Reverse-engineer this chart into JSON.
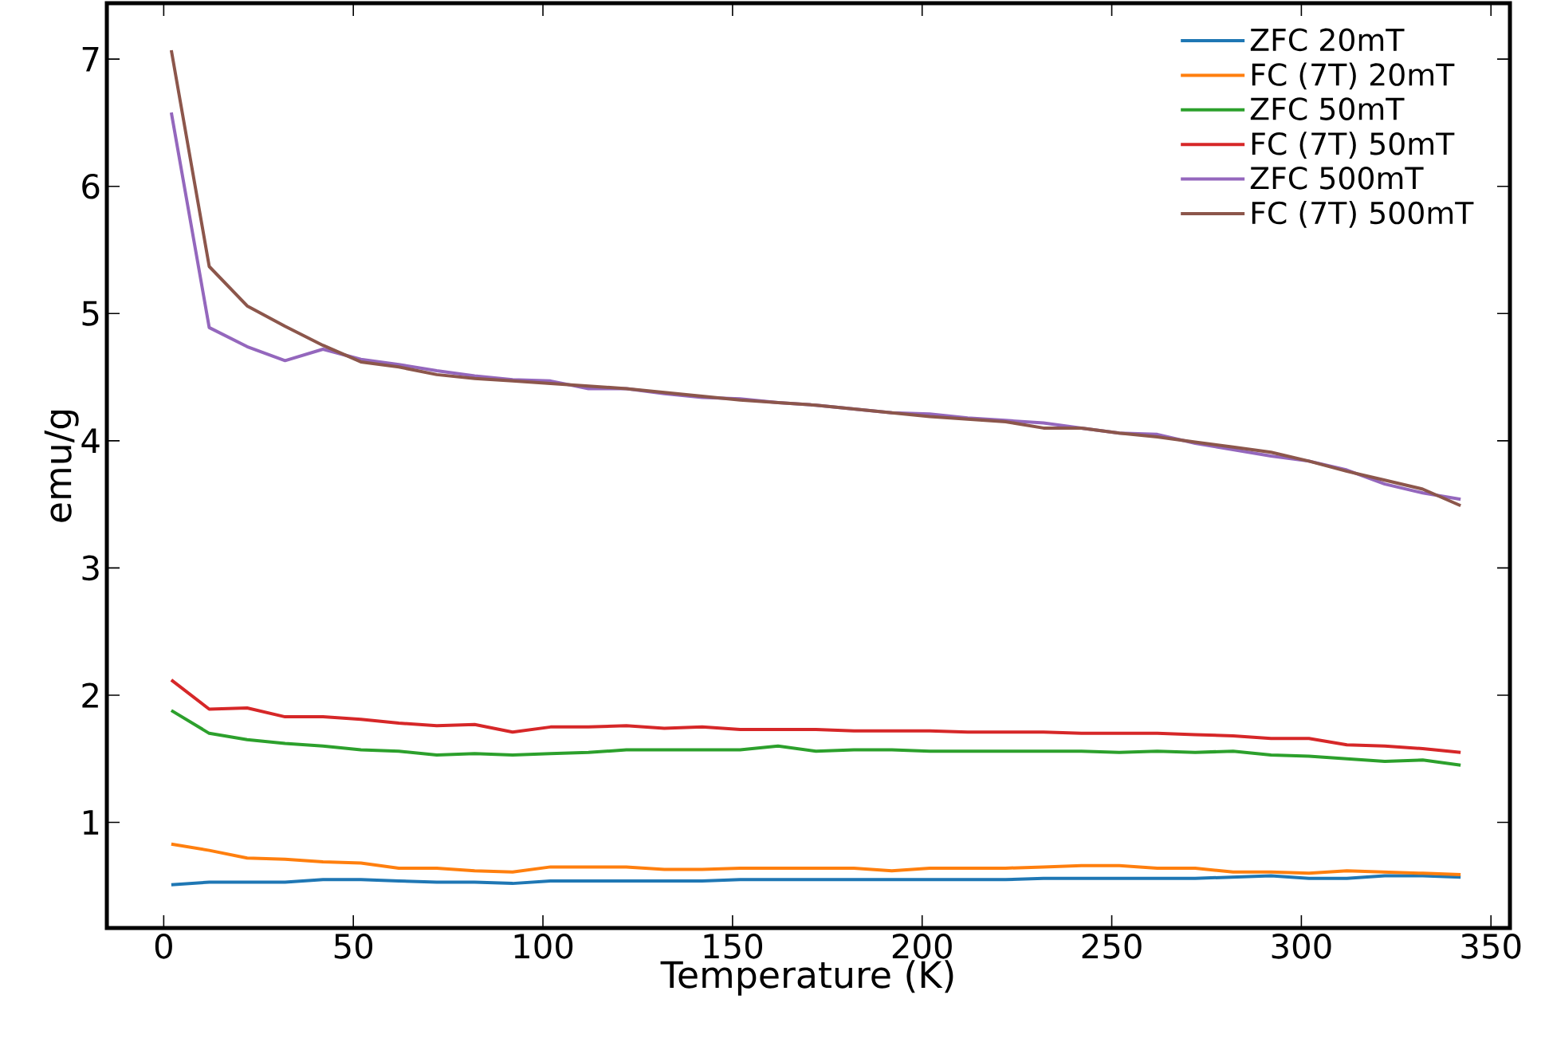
{
  "chart_data": {
    "type": "line",
    "xlabel": "Temperature (K)",
    "ylabel": "emu/g",
    "x": [
      2,
      12,
      22,
      32,
      42,
      52,
      62,
      72,
      82,
      92,
      102,
      112,
      122,
      132,
      142,
      152,
      162,
      172,
      182,
      192,
      202,
      212,
      222,
      232,
      242,
      252,
      262,
      272,
      282,
      292,
      302,
      312,
      322,
      332,
      342
    ],
    "series": [
      {
        "name": "ZFC 20mT",
        "color": "#1f77b4",
        "values": [
          0.51,
          0.53,
          0.53,
          0.53,
          0.55,
          0.55,
          0.54,
          0.53,
          0.53,
          0.52,
          0.54,
          0.54,
          0.54,
          0.54,
          0.54,
          0.55,
          0.55,
          0.55,
          0.55,
          0.55,
          0.55,
          0.55,
          0.55,
          0.56,
          0.56,
          0.56,
          0.56,
          0.56,
          0.57,
          0.58,
          0.56,
          0.56,
          0.58,
          0.58,
          0.57
        ]
      },
      {
        "name": "FC (7T) 20mT",
        "color": "#ff7f0e",
        "values": [
          0.83,
          0.78,
          0.72,
          0.71,
          0.69,
          0.68,
          0.64,
          0.64,
          0.62,
          0.61,
          0.65,
          0.65,
          0.65,
          0.63,
          0.63,
          0.64,
          0.64,
          0.64,
          0.64,
          0.62,
          0.64,
          0.64,
          0.64,
          0.65,
          0.66,
          0.66,
          0.64,
          0.64,
          0.61,
          0.61,
          0.6,
          0.62,
          0.61,
          0.6,
          0.59
        ]
      },
      {
        "name": "ZFC 50mT",
        "color": "#2ca02c",
        "values": [
          1.88,
          1.7,
          1.65,
          1.62,
          1.6,
          1.57,
          1.56,
          1.53,
          1.54,
          1.53,
          1.54,
          1.55,
          1.57,
          1.57,
          1.57,
          1.57,
          1.6,
          1.56,
          1.57,
          1.57,
          1.56,
          1.56,
          1.56,
          1.56,
          1.56,
          1.55,
          1.56,
          1.55,
          1.56,
          1.53,
          1.52,
          1.5,
          1.48,
          1.49,
          1.45
        ]
      },
      {
        "name": "FC (7T) 50mT",
        "color": "#d62728",
        "values": [
          2.12,
          1.89,
          1.9,
          1.83,
          1.83,
          1.81,
          1.78,
          1.76,
          1.77,
          1.71,
          1.75,
          1.75,
          1.76,
          1.74,
          1.75,
          1.73,
          1.73,
          1.73,
          1.72,
          1.72,
          1.72,
          1.71,
          1.71,
          1.71,
          1.7,
          1.7,
          1.7,
          1.69,
          1.68,
          1.66,
          1.66,
          1.61,
          1.6,
          1.58,
          1.55
        ]
      },
      {
        "name": "ZFC 500mT",
        "color": "#9467bd",
        "values": [
          6.58,
          4.89,
          4.74,
          4.63,
          4.72,
          4.64,
          4.6,
          4.55,
          4.51,
          4.48,
          4.47,
          4.41,
          4.41,
          4.37,
          4.34,
          4.33,
          4.3,
          4.28,
          4.25,
          4.22,
          4.21,
          4.18,
          4.16,
          4.14,
          4.1,
          4.06,
          4.05,
          3.98,
          3.93,
          3.88,
          3.84,
          3.77,
          3.66,
          3.59,
          3.54
        ]
      },
      {
        "name": "FC (7T) 500mT",
        "color": "#8c564b",
        "values": [
          7.07,
          5.37,
          5.06,
          4.9,
          4.75,
          4.62,
          4.58,
          4.52,
          4.49,
          4.47,
          4.45,
          4.43,
          4.41,
          4.38,
          4.35,
          4.32,
          4.3,
          4.28,
          4.25,
          4.22,
          4.19,
          4.17,
          4.15,
          4.1,
          4.1,
          4.06,
          4.03,
          3.99,
          3.95,
          3.91,
          3.84,
          3.76,
          3.69,
          3.62,
          3.49
        ]
      }
    ],
    "xlim": [
      -15,
      355
    ],
    "ylim": [
      0.17,
      7.44
    ],
    "xticks": [
      0,
      50,
      100,
      150,
      200,
      250,
      300,
      350
    ],
    "yticks": [
      1,
      2,
      3,
      4,
      5,
      6,
      7
    ],
    "grid": false,
    "legend": "top right",
    "marker": "none",
    "line_style": "solid"
  }
}
